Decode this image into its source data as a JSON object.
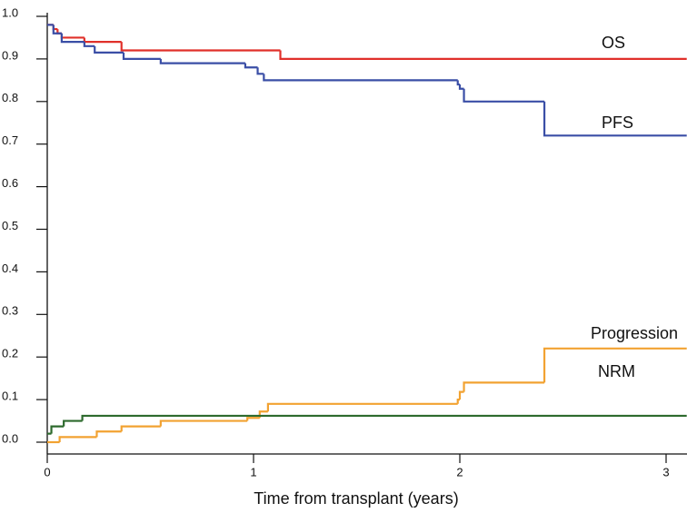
{
  "chart_data": {
    "type": "step",
    "x_label": "Time from transplant (years)",
    "xlim": [
      0,
      3.1
    ],
    "xticks": [
      0,
      1,
      2,
      3
    ],
    "ylim": [
      0,
      1
    ],
    "yticks": [
      {
        "value": 0,
        "label": "0.0"
      },
      0.1,
      0.2,
      0.3,
      0.4,
      0.5,
      0.6,
      0.7,
      0.8,
      0.9,
      {
        "value": 1,
        "label": "1.0"
      }
    ],
    "series": [
      {
        "name": "OS",
        "color": "#e0302a",
        "x": [
          0,
          0.03,
          0.05,
          0.07,
          0.18,
          0.36,
          1.13,
          3.1
        ],
        "values": [
          0.98,
          0.97,
          0.96,
          0.95,
          0.94,
          0.92,
          0.9,
          0.9
        ]
      },
      {
        "name": "PFS",
        "color": "#3a4ea6",
        "x": [
          0,
          0.03,
          0.07,
          0.18,
          0.23,
          0.37,
          0.55,
          0.96,
          1.02,
          1.05,
          1.99,
          2.0,
          2.02,
          2.41,
          3.1
        ],
        "values": [
          0.98,
          0.96,
          0.94,
          0.93,
          0.915,
          0.9,
          0.89,
          0.88,
          0.865,
          0.85,
          0.84,
          0.83,
          0.8,
          0.72,
          0.72
        ]
      },
      {
        "name": "Progression",
        "color": "#f2a231",
        "x": [
          0,
          0.06,
          0.24,
          0.36,
          0.55,
          0.97,
          1.03,
          1.07,
          1.99,
          2.0,
          2.02,
          2.41,
          3.1
        ],
        "values": [
          0,
          0.012,
          0.025,
          0.037,
          0.05,
          0.057,
          0.072,
          0.09,
          0.1,
          0.118,
          0.14,
          0.22,
          0.22
        ]
      },
      {
        "name": "NRM",
        "color": "#2d6a2d",
        "x": [
          0,
          0.02,
          0.08,
          0.17,
          3.1
        ],
        "values": [
          0.02,
          0.037,
          0.05,
          0.062,
          0.062
        ]
      }
    ]
  }
}
